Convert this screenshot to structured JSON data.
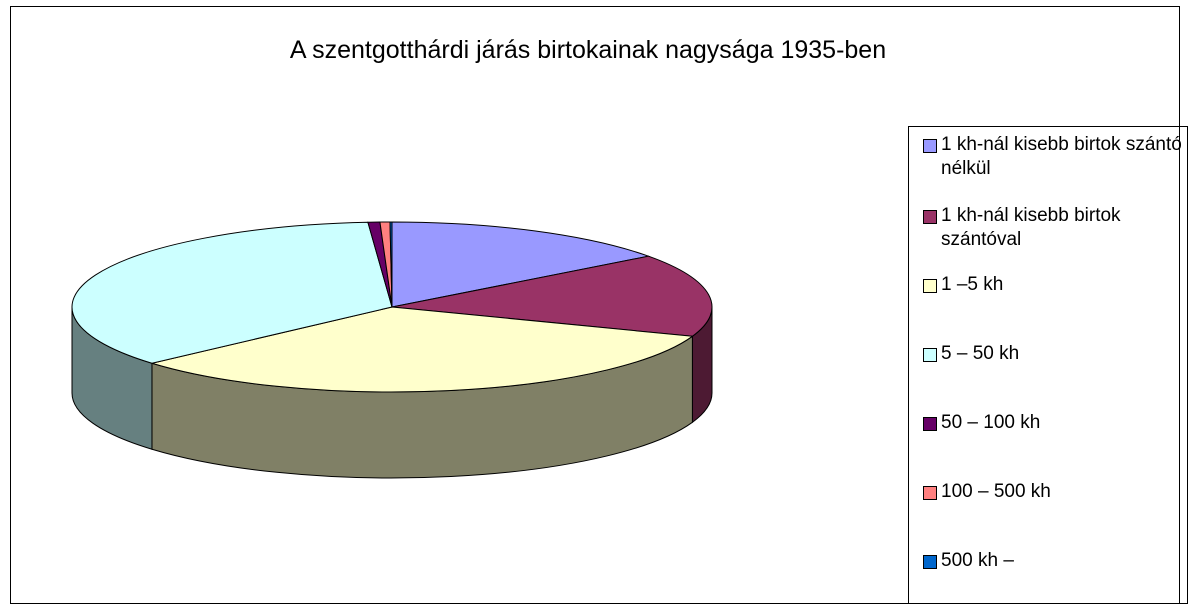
{
  "chart_data": {
    "type": "pie3d",
    "title": "A szentgotthárdi járás birtokainak nagysága 1935-ben",
    "categories": [
      "1 kh-nál kisebb birtok szántó nélkül",
      "1 kh-nál kisebb birtok szántóval",
      "1 –5  kh",
      "5 – 50 kh",
      "50 – 100 kh",
      "100 – 500 kh",
      "500 kh –"
    ],
    "values": [
      14.8,
      15.8,
      32.9,
      35.3,
      0.6,
      0.5,
      0.1
    ],
    "colors": [
      "#9999ff",
      "#993366",
      "#ffffcc",
      "#ccffff",
      "#660066",
      "#ff8080",
      "#0066cc"
    ],
    "legend": "right"
  }
}
